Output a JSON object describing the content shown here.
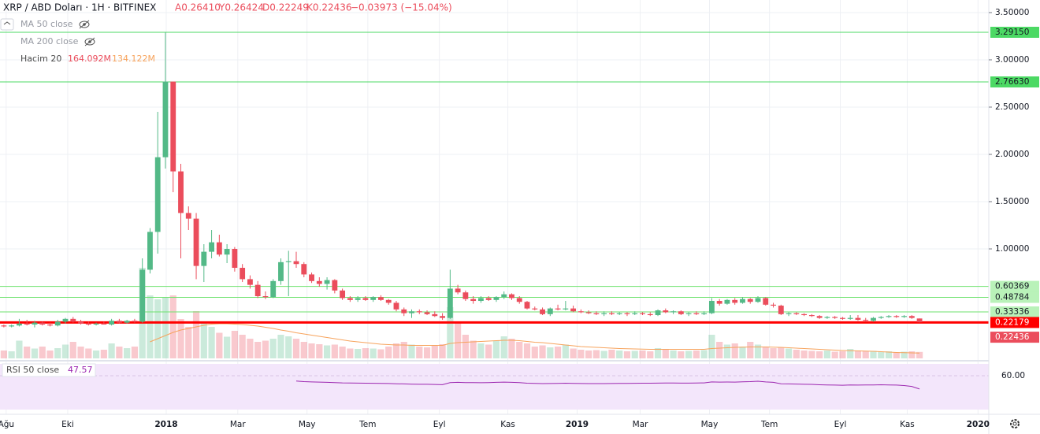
{
  "header": {
    "symbol": "XRP / ABD Doları · 1H · BITFINEX",
    "ohlc": [
      "A0.26410",
      "Y0.26424",
      "D0.22249",
      "K0.22436"
    ],
    "change": "−0.03973 (−15.04%)"
  },
  "indicators": [
    "MA 50 close",
    "MA 200 close"
  ],
  "volume_legend": {
    "name": "Hacim 20",
    "values": [
      "164.092M",
      "134.122M"
    ]
  },
  "rsi_legend": {
    "name": "RSI 50 close",
    "value": "47.57"
  },
  "chart_data": {
    "type": "candlestick",
    "up_color": "#53b987",
    "down_color": "#eb4d5c",
    "volume_ma_color": "#f7a35c",
    "rsi_color": "#9c27b0",
    "xlim": [
      -0.5,
      128
    ],
    "xticks": [
      {
        "value": 0.3,
        "label": "Ağu"
      },
      {
        "value": 8.3,
        "label": "Eki"
      },
      {
        "value": 21.1,
        "label": "2018"
      },
      {
        "value": 30.4,
        "label": "Mar"
      },
      {
        "value": 39.4,
        "label": "May"
      },
      {
        "value": 47.3,
        "label": "Tem"
      },
      {
        "value": 56.6,
        "label": "Eyl"
      },
      {
        "value": 65.5,
        "label": "Kas"
      },
      {
        "value": 74.5,
        "label": "2019"
      },
      {
        "value": 82.7,
        "label": "Mar"
      },
      {
        "value": 91.7,
        "label": "May"
      },
      {
        "value": 99.5,
        "label": "Tem"
      },
      {
        "value": 108.7,
        "label": "Eyl"
      },
      {
        "value": 117.4,
        "label": "Kas"
      },
      {
        "value": 126.6,
        "label": "2020"
      }
    ],
    "ylim": [
      -0.158,
      3.583
    ],
    "yticks": [
      {
        "value": 3.5,
        "label": "3.50000"
      },
      {
        "value": 3,
        "label": "3.00000"
      },
      {
        "value": 2.5,
        "label": "2.50000"
      },
      {
        "value": 2,
        "label": "2.00000"
      },
      {
        "value": 1.5,
        "label": "1.50000"
      },
      {
        "value": 1,
        "label": "1.00000"
      }
    ],
    "grid": true,
    "levels": [
      {
        "value": 3.2915,
        "label": "3.29150",
        "color": "#4cd964",
        "box": "#4cd964"
      },
      {
        "value": 2.7663,
        "label": "2.76630",
        "color": "#4cd964",
        "box": "#4cd964"
      },
      {
        "value": 0.60369,
        "label": "0.60369",
        "color": "#6ee26e",
        "box": "#b9f2b9"
      },
      {
        "value": 0.48784,
        "label": "0.48784",
        "color": "#6ee26e",
        "box": "#b9f2b9"
      },
      {
        "value": 0.33336,
        "label": "0.33336",
        "color": "#6ee26e",
        "box": "#b9f2b9"
      },
      {
        "value": 0.22179,
        "label": "0.22179",
        "color": "#ff0000",
        "box": "#ff0000",
        "width": 3
      }
    ],
    "last_price": {
      "value": 0.22436,
      "label": "0.22436"
    },
    "candles": [
      [
        0.19,
        0.2,
        0.17,
        0.18
      ],
      [
        0.18,
        0.2,
        0.17,
        0.19
      ],
      [
        0.19,
        0.26,
        0.18,
        0.21
      ],
      [
        0.21,
        0.25,
        0.19,
        0.2
      ],
      [
        0.2,
        0.24,
        0.17,
        0.22
      ],
      [
        0.22,
        0.23,
        0.19,
        0.2
      ],
      [
        0.2,
        0.22,
        0.18,
        0.19
      ],
      [
        0.19,
        0.25,
        0.18,
        0.23
      ],
      [
        0.23,
        0.27,
        0.21,
        0.26
      ],
      [
        0.26,
        0.28,
        0.22,
        0.23
      ],
      [
        0.23,
        0.25,
        0.2,
        0.21
      ],
      [
        0.21,
        0.23,
        0.19,
        0.2
      ],
      [
        0.2,
        0.22,
        0.19,
        0.21
      ],
      [
        0.21,
        0.23,
        0.2,
        0.2
      ],
      [
        0.2,
        0.26,
        0.19,
        0.24
      ],
      [
        0.24,
        0.26,
        0.21,
        0.22
      ],
      [
        0.22,
        0.25,
        0.21,
        0.24
      ],
      [
        0.24,
        0.26,
        0.22,
        0.23
      ],
      [
        0.23,
        0.9,
        0.22,
        0.78
      ],
      [
        0.78,
        1.22,
        0.74,
        1.18
      ],
      [
        1.18,
        2.45,
        0.95,
        1.97
      ],
      [
        1.97,
        3.29,
        1.85,
        2.77
      ],
      [
        2.77,
        2.77,
        1.6,
        1.82
      ],
      [
        1.82,
        1.9,
        0.9,
        1.38
      ],
      [
        1.38,
        1.45,
        1.2,
        1.32
      ],
      [
        1.32,
        1.38,
        0.68,
        0.82
      ],
      [
        0.82,
        1.05,
        0.65,
        0.97
      ],
      [
        0.97,
        1.2,
        0.9,
        1.07
      ],
      [
        1.07,
        1.15,
        0.92,
        0.94
      ],
      [
        0.94,
        1.05,
        0.85,
        1.0
      ],
      [
        1.0,
        1.02,
        0.76,
        0.8
      ],
      [
        0.8,
        0.84,
        0.65,
        0.68
      ],
      [
        0.68,
        0.72,
        0.58,
        0.62
      ],
      [
        0.62,
        0.66,
        0.48,
        0.5
      ],
      [
        0.5,
        0.55,
        0.47,
        0.49
      ],
      [
        0.49,
        0.68,
        0.48,
        0.66
      ],
      [
        0.66,
        0.9,
        0.62,
        0.86
      ],
      [
        0.86,
        0.98,
        0.5,
        0.87
      ],
      [
        0.87,
        0.97,
        0.8,
        0.84
      ],
      [
        0.84,
        0.86,
        0.7,
        0.73
      ],
      [
        0.73,
        0.75,
        0.64,
        0.66
      ],
      [
        0.66,
        0.7,
        0.6,
        0.63
      ],
      [
        0.63,
        0.7,
        0.57,
        0.67
      ],
      [
        0.67,
        0.68,
        0.53,
        0.56
      ],
      [
        0.56,
        0.58,
        0.46,
        0.48
      ],
      [
        0.48,
        0.5,
        0.44,
        0.46
      ],
      [
        0.46,
        0.5,
        0.44,
        0.48
      ],
      [
        0.48,
        0.5,
        0.45,
        0.46
      ],
      [
        0.46,
        0.5,
        0.44,
        0.49
      ],
      [
        0.49,
        0.51,
        0.45,
        0.46
      ],
      [
        0.46,
        0.47,
        0.41,
        0.43
      ],
      [
        0.43,
        0.45,
        0.34,
        0.36
      ],
      [
        0.36,
        0.38,
        0.29,
        0.32
      ],
      [
        0.32,
        0.36,
        0.27,
        0.34
      ],
      [
        0.34,
        0.36,
        0.31,
        0.33
      ],
      [
        0.33,
        0.35,
        0.3,
        0.31
      ],
      [
        0.31,
        0.34,
        0.28,
        0.29
      ],
      [
        0.29,
        0.32,
        0.25,
        0.27
      ],
      [
        0.27,
        0.78,
        0.26,
        0.58
      ],
      [
        0.58,
        0.62,
        0.52,
        0.54
      ],
      [
        0.54,
        0.56,
        0.45,
        0.47
      ],
      [
        0.47,
        0.5,
        0.42,
        0.45
      ],
      [
        0.45,
        0.5,
        0.43,
        0.48
      ],
      [
        0.48,
        0.5,
        0.45,
        0.46
      ],
      [
        0.46,
        0.5,
        0.44,
        0.49
      ],
      [
        0.49,
        0.55,
        0.47,
        0.52
      ],
      [
        0.52,
        0.53,
        0.46,
        0.48
      ],
      [
        0.48,
        0.5,
        0.42,
        0.44
      ],
      [
        0.44,
        0.45,
        0.36,
        0.37
      ],
      [
        0.37,
        0.39,
        0.35,
        0.36
      ],
      [
        0.36,
        0.38,
        0.3,
        0.31
      ],
      [
        0.31,
        0.38,
        0.29,
        0.37
      ],
      [
        0.37,
        0.41,
        0.35,
        0.36
      ],
      [
        0.36,
        0.45,
        0.35,
        0.37
      ],
      [
        0.37,
        0.4,
        0.33,
        0.34
      ],
      [
        0.34,
        0.36,
        0.32,
        0.33
      ],
      [
        0.33,
        0.35,
        0.31,
        0.32
      ],
      [
        0.32,
        0.34,
        0.3,
        0.31
      ],
      [
        0.31,
        0.34,
        0.29,
        0.32
      ],
      [
        0.32,
        0.34,
        0.3,
        0.31
      ],
      [
        0.31,
        0.33,
        0.3,
        0.32
      ],
      [
        0.32,
        0.33,
        0.29,
        0.31
      ],
      [
        0.31,
        0.34,
        0.3,
        0.32
      ],
      [
        0.32,
        0.33,
        0.3,
        0.31
      ],
      [
        0.31,
        0.33,
        0.29,
        0.3
      ],
      [
        0.3,
        0.36,
        0.29,
        0.35
      ],
      [
        0.35,
        0.37,
        0.32,
        0.33
      ],
      [
        0.33,
        0.35,
        0.31,
        0.34
      ],
      [
        0.34,
        0.35,
        0.3,
        0.31
      ],
      [
        0.31,
        0.33,
        0.29,
        0.32
      ],
      [
        0.32,
        0.34,
        0.3,
        0.31
      ],
      [
        0.31,
        0.34,
        0.3,
        0.32
      ],
      [
        0.32,
        0.48,
        0.31,
        0.45
      ],
      [
        0.45,
        0.47,
        0.4,
        0.42
      ],
      [
        0.42,
        0.47,
        0.41,
        0.46
      ],
      [
        0.46,
        0.48,
        0.41,
        0.43
      ],
      [
        0.43,
        0.49,
        0.42,
        0.47
      ],
      [
        0.47,
        0.48,
        0.42,
        0.44
      ],
      [
        0.44,
        0.5,
        0.43,
        0.48
      ],
      [
        0.48,
        0.49,
        0.4,
        0.41
      ],
      [
        0.41,
        0.43,
        0.38,
        0.4
      ],
      [
        0.4,
        0.41,
        0.3,
        0.31
      ],
      [
        0.31,
        0.33,
        0.29,
        0.32
      ],
      [
        0.32,
        0.33,
        0.3,
        0.31
      ],
      [
        0.31,
        0.32,
        0.29,
        0.3
      ],
      [
        0.3,
        0.31,
        0.28,
        0.29
      ],
      [
        0.29,
        0.3,
        0.26,
        0.27
      ],
      [
        0.27,
        0.29,
        0.26,
        0.28
      ],
      [
        0.28,
        0.29,
        0.26,
        0.27
      ],
      [
        0.27,
        0.28,
        0.25,
        0.26
      ],
      [
        0.26,
        0.3,
        0.25,
        0.27
      ],
      [
        0.27,
        0.3,
        0.24,
        0.25
      ],
      [
        0.25,
        0.27,
        0.23,
        0.24
      ],
      [
        0.24,
        0.28,
        0.23,
        0.27
      ],
      [
        0.27,
        0.29,
        0.26,
        0.28
      ],
      [
        0.28,
        0.3,
        0.27,
        0.29
      ],
      [
        0.29,
        0.3,
        0.27,
        0.28
      ],
      [
        0.28,
        0.3,
        0.27,
        0.29
      ],
      [
        0.29,
        0.3,
        0.26,
        0.27
      ],
      [
        0.2641,
        0.26424,
        0.22249,
        0.22436
      ]
    ],
    "volume_ylim": [
      0,
      4500
    ],
    "volume": [
      200,
      180,
      450,
      300,
      250,
      300,
      200,
      260,
      350,
      420,
      300,
      250,
      200,
      220,
      380,
      300,
      260,
      300,
      2300,
      1600,
      1500,
      1550,
      1600,
      1000,
      800,
      1200,
      900,
      800,
      650,
      550,
      700,
      600,
      500,
      420,
      450,
      500,
      600,
      560,
      500,
      420,
      380,
      360,
      330,
      350,
      300,
      250,
      240,
      260,
      250,
      230,
      300,
      380,
      420,
      350,
      300,
      280,
      320,
      360,
      1300,
      900,
      600,
      450,
      380,
      350,
      450,
      560,
      500,
      420,
      380,
      300,
      330,
      280,
      300,
      350,
      250,
      220,
      200,
      210,
      190,
      220,
      200,
      180,
      190,
      200,
      180,
      260,
      220,
      200,
      180,
      190,
      200,
      210,
      600,
      420,
      350,
      380,
      300,
      420,
      350,
      300,
      260,
      280,
      250,
      220,
      200,
      190,
      180,
      200,
      170,
      180,
      240,
      200,
      180,
      190,
      170,
      180,
      160,
      170,
      180,
      164.092
    ],
    "volume_ma": [
      null,
      null,
      null,
      null,
      null,
      null,
      null,
      null,
      null,
      null,
      null,
      null,
      null,
      null,
      null,
      null,
      null,
      null,
      null,
      420,
      500,
      580,
      660,
      720,
      760,
      800,
      840,
      870,
      880,
      880,
      870,
      860,
      840,
      820,
      790,
      760,
      720,
      690,
      650,
      620,
      590,
      560,
      530,
      500,
      470,
      440,
      420,
      400,
      380,
      360,
      350,
      340,
      340,
      330,
      330,
      330,
      330,
      330,
      380,
      400,
      410,
      420,
      430,
      440,
      450,
      460,
      460,
      450,
      430,
      410,
      400,
      380,
      360,
      340,
      320,
      300,
      290,
      280,
      270,
      260,
      250,
      245,
      240,
      235,
      230,
      230,
      230,
      230,
      230,
      230,
      230,
      230,
      250,
      260,
      270,
      280,
      285,
      290,
      290,
      290,
      285,
      280,
      270,
      260,
      250,
      240,
      230,
      220,
      210,
      200,
      195,
      190,
      185,
      180,
      170,
      160,
      150,
      145,
      140,
      134.122
    ],
    "rsi_ylim": [
      10,
      71
    ],
    "rsi_yticks": [
      {
        "value": 60,
        "label": "60.00"
      }
    ],
    "rsi": [
      null,
      null,
      null,
      null,
      null,
      null,
      null,
      null,
      null,
      null,
      null,
      null,
      null,
      null,
      null,
      null,
      null,
      null,
      null,
      null,
      null,
      null,
      null,
      null,
      null,
      null,
      null,
      null,
      null,
      null,
      null,
      null,
      null,
      null,
      null,
      null,
      null,
      null,
      55,
      54.5,
      54.2,
      54,
      53.8,
      53.6,
      53.3,
      53.2,
      53.1,
      53,
      52.9,
      52.8,
      52.7,
      52.5,
      52.3,
      52.1,
      52,
      52,
      51.8,
      51.6,
      53.5,
      53.8,
      53.6,
      53.5,
      53.4,
      53.6,
      53.8,
      54,
      53.8,
      53.5,
      53,
      52.8,
      52.6,
      52.7,
      52.8,
      53,
      52.8,
      52.7,
      52.6,
      52.6,
      52.6,
      52.7,
      52.8,
      52.8,
      52.9,
      53,
      53,
      53.1,
      53.2,
      53.2,
      53.1,
      53.1,
      53.2,
      53.3,
      54.2,
      54,
      54.1,
      54,
      54.3,
      54.5,
      54.8,
      54.2,
      53.8,
      52.5,
      52.3,
      52.2,
      52,
      51.9,
      51.5,
      51.3,
      51.2,
      51.1,
      51.3,
      51.2,
      51.3,
      51.4,
      51.5,
      51.4,
      51.2,
      50.8,
      50,
      47.57
    ]
  }
}
